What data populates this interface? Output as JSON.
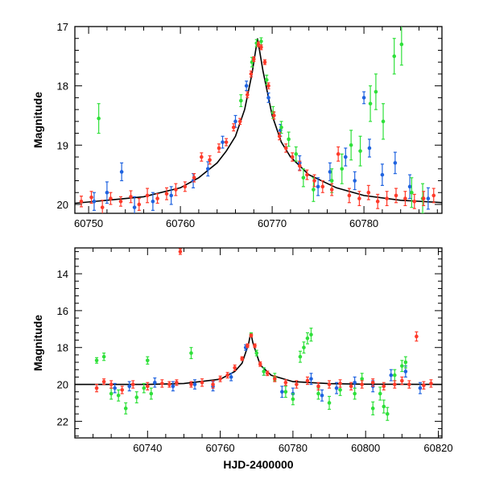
{
  "chart_data": [
    {
      "type": "scatter",
      "panel": "top",
      "xlabel": "",
      "ylabel": "Magnitude",
      "xlim": [
        60748.5,
        60788.5
      ],
      "ylim": [
        20.15,
        17.0
      ],
      "y_inverted": true,
      "xticks": [
        60750,
        60760,
        60770,
        60780
      ],
      "xtick_labels": [
        "60750",
        "60760",
        "60770",
        "60780"
      ],
      "yticks": [
        17,
        18,
        19,
        20
      ],
      "ytick_labels": [
        "17",
        "18",
        "19",
        "20"
      ],
      "grid": false,
      "legend": "none",
      "model_curve": {
        "peak_x": 60768.4,
        "peak_mag": 17.2,
        "baseline_mag": 20.0,
        "x": [
          60748.5,
          60752,
          60756,
          60760,
          60762,
          60764,
          60765,
          60766,
          60767,
          60767.8,
          60768.4,
          60769,
          60770,
          60771,
          60772,
          60774,
          60777,
          60780,
          60784,
          60788.5
        ],
        "y": [
          19.98,
          19.93,
          19.87,
          19.72,
          19.55,
          19.3,
          19.1,
          18.85,
          18.4,
          17.8,
          17.2,
          17.75,
          18.5,
          18.95,
          19.2,
          19.5,
          19.72,
          19.85,
          19.93,
          19.97
        ]
      },
      "series": [
        {
          "color": "#ff3a2a",
          "points": [
            [
              60749.2,
              19.95,
              0.09
            ],
            [
              60750.3,
              19.88,
              0.1
            ],
            [
              60751.5,
              20.05,
              0.12
            ],
            [
              60752.4,
              19.9,
              0.1
            ],
            [
              60753.5,
              19.95,
              0.08
            ],
            [
              60754.6,
              19.87,
              0.1
            ],
            [
              60755.5,
              20.0,
              0.1
            ],
            [
              60756.4,
              19.85,
              0.12
            ],
            [
              60757.5,
              19.9,
              0.08
            ],
            [
              60758.5,
              19.82,
              0.1
            ],
            [
              60759.5,
              19.75,
              0.1
            ],
            [
              60760.5,
              19.7,
              0.08
            ],
            [
              60761.5,
              19.55,
              0.07
            ],
            [
              60762.3,
              19.2,
              0.07
            ],
            [
              60763.2,
              19.25,
              0.07
            ],
            [
              60764.2,
              19.05,
              0.07
            ],
            [
              60765.0,
              18.95,
              0.06
            ],
            [
              60765.8,
              18.7,
              0.06
            ],
            [
              60766.5,
              18.6,
              0.05
            ],
            [
              60767.3,
              18.15,
              0.05
            ],
            [
              60767.7,
              17.8,
              0.05
            ],
            [
              60768.0,
              17.55,
              0.04
            ],
            [
              60768.5,
              17.3,
              0.04
            ],
            [
              60768.8,
              17.35,
              0.04
            ],
            [
              60769.2,
              17.6,
              0.04
            ],
            [
              60769.6,
              18.0,
              0.05
            ],
            [
              60770.2,
              18.5,
              0.06
            ],
            [
              60770.8,
              18.85,
              0.06
            ],
            [
              60771.5,
              19.05,
              0.07
            ],
            [
              60772.2,
              19.2,
              0.07
            ],
            [
              60773.0,
              19.35,
              0.08
            ],
            [
              60773.8,
              19.5,
              0.08
            ],
            [
              60774.6,
              19.6,
              0.1
            ],
            [
              60775.5,
              19.7,
              0.1
            ],
            [
              60776.5,
              19.75,
              0.1
            ],
            [
              60777.2,
              19.15,
              0.12
            ],
            [
              60778.4,
              19.85,
              0.12
            ],
            [
              60779.5,
              19.9,
              0.12
            ],
            [
              60780.5,
              19.8,
              0.12
            ],
            [
              60781.5,
              19.95,
              0.12
            ],
            [
              60782.5,
              19.9,
              0.12
            ],
            [
              60783.5,
              19.85,
              0.12
            ],
            [
              60784.5,
              19.9,
              0.12
            ],
            [
              60785.5,
              19.95,
              0.12
            ],
            [
              60786.5,
              19.9,
              0.12
            ],
            [
              60787.6,
              19.85,
              0.12
            ]
          ]
        },
        {
          "color": "#1f63e0",
          "points": [
            [
              60750.6,
              19.95,
              0.15
            ],
            [
              60752.0,
              19.8,
              0.18
            ],
            [
              60753.6,
              19.45,
              0.15
            ],
            [
              60755.0,
              20.05,
              0.18
            ],
            [
              60757.0,
              19.95,
              0.15
            ],
            [
              60759.0,
              19.85,
              0.15
            ],
            [
              60761.4,
              19.6,
              0.12
            ],
            [
              60763.0,
              19.4,
              0.12
            ],
            [
              60764.6,
              18.95,
              0.1
            ],
            [
              60766.0,
              18.6,
              0.1
            ],
            [
              60767.2,
              18.0,
              0.08
            ],
            [
              60769.6,
              18.2,
              0.08
            ],
            [
              60770.9,
              18.75,
              0.1
            ],
            [
              60773.0,
              19.3,
              0.12
            ],
            [
              60775.0,
              19.7,
              0.15
            ],
            [
              60776.3,
              19.45,
              0.15
            ],
            [
              60778.0,
              19.2,
              0.15
            ],
            [
              60779.0,
              19.6,
              0.15
            ],
            [
              60780.0,
              18.2,
              0.1
            ],
            [
              60780.6,
              19.05,
              0.15
            ],
            [
              60782.0,
              19.5,
              0.18
            ],
            [
              60783.4,
              19.3,
              0.18
            ],
            [
              60785.0,
              19.7,
              0.2
            ],
            [
              60787.0,
              19.9,
              0.18
            ]
          ]
        },
        {
          "color": "#2fe03a",
          "points": [
            [
              60751.1,
              18.55,
              0.25
            ],
            [
              60766.6,
              18.25,
              0.1
            ],
            [
              60767.8,
              17.6,
              0.08
            ],
            [
              60768.3,
              17.28,
              0.06
            ],
            [
              60768.8,
              17.25,
              0.06
            ],
            [
              60769.4,
              17.9,
              0.08
            ],
            [
              60770.1,
              18.45,
              0.1
            ],
            [
              60771.0,
              18.7,
              0.1
            ],
            [
              60771.8,
              18.9,
              0.12
            ],
            [
              60772.6,
              19.15,
              0.12
            ],
            [
              60773.4,
              19.55,
              0.15
            ],
            [
              60774.5,
              19.75,
              0.2
            ],
            [
              60776.5,
              19.6,
              0.2
            ],
            [
              60777.6,
              19.4,
              0.25
            ],
            [
              60778.6,
              19.0,
              0.25
            ],
            [
              60779.6,
              19.1,
              0.25
            ],
            [
              60780.7,
              18.3,
              0.3
            ],
            [
              60781.3,
              18.1,
              0.3
            ],
            [
              60782.1,
              18.6,
              0.3
            ],
            [
              60783.3,
              17.5,
              0.3
            ],
            [
              60784.1,
              17.3,
              0.35
            ],
            [
              60785.2,
              19.8,
              0.25
            ],
            [
              60786.4,
              19.9,
              0.25
            ]
          ]
        }
      ]
    },
    {
      "type": "scatter",
      "panel": "bottom",
      "xlabel": "HJD-2400000",
      "ylabel": "Magnitude",
      "xlim": [
        60720,
        60821
      ],
      "ylim": [
        22.9,
        12.6
      ],
      "y_inverted": true,
      "xticks": [
        60740,
        60760,
        60780,
        60800,
        60820
      ],
      "xtick_labels": [
        "60740",
        "60760",
        "60780",
        "60800",
        "60820"
      ],
      "yticks": [
        14,
        16,
        18,
        20,
        22
      ],
      "ytick_labels": [
        "14",
        "16",
        "18",
        "20",
        "22"
      ],
      "grid": false,
      "legend": "none",
      "model_curve": {
        "peak_x": 60768.4,
        "peak_mag": 17.2,
        "baseline_mag": 20.0,
        "x": [
          60720,
          60740,
          60750,
          60760,
          60764,
          60766,
          60767.8,
          60768.4,
          60769,
          60771,
          60774,
          60780,
          60790,
          60800,
          60821
        ],
        "y": [
          20.0,
          20.0,
          19.95,
          19.72,
          19.3,
          18.85,
          17.8,
          17.2,
          17.75,
          18.95,
          19.5,
          19.85,
          19.96,
          19.99,
          20.0
        ]
      },
      "series": [
        {
          "color": "#ff3a2a",
          "points": [
            [
              60726,
              20.2,
              0.2
            ],
            [
              60728,
              19.85,
              0.15
            ],
            [
              60730,
              20.0,
              0.2
            ],
            [
              60733,
              20.3,
              0.2
            ],
            [
              60736,
              20.0,
              0.2
            ],
            [
              60740,
              20.1,
              0.2
            ],
            [
              60744,
              19.95,
              0.2
            ],
            [
              60746,
              20.0,
              0.15
            ],
            [
              60748,
              19.9,
              0.15
            ],
            [
              60749,
              12.8,
              0.15
            ],
            [
              60752,
              20.0,
              0.15
            ],
            [
              60755,
              19.9,
              0.2
            ],
            [
              60758,
              20.0,
              0.2
            ],
            [
              60760,
              19.7,
              0.15
            ],
            [
              60762,
              19.5,
              0.15
            ],
            [
              60764,
              19.1,
              0.15
            ],
            [
              60766,
              18.6,
              0.1
            ],
            [
              60767.5,
              17.9,
              0.1
            ],
            [
              60768.5,
              17.35,
              0.08
            ],
            [
              60769.5,
              17.9,
              0.1
            ],
            [
              60771,
              18.9,
              0.12
            ],
            [
              60773,
              19.4,
              0.12
            ],
            [
              60775,
              19.7,
              0.15
            ],
            [
              60778,
              19.9,
              0.15
            ],
            [
              60781,
              20.0,
              0.2
            ],
            [
              60784,
              19.8,
              0.2
            ],
            [
              60787,
              20.1,
              0.2
            ],
            [
              60790,
              20.0,
              0.2
            ],
            [
              60793,
              19.95,
              0.2
            ],
            [
              60796,
              20.1,
              0.2
            ],
            [
              60799,
              20.0,
              0.2
            ],
            [
              60802,
              19.9,
              0.2
            ],
            [
              60805,
              20.1,
              0.2
            ],
            [
              60808,
              20.0,
              0.2
            ],
            [
              60810,
              19.8,
              0.2
            ],
            [
              60812,
              20.0,
              0.2
            ],
            [
              60814,
              17.4,
              0.25
            ],
            [
              60816,
              20.05,
              0.2
            ],
            [
              60818,
              19.95,
              0.2
            ]
          ]
        },
        {
          "color": "#1f63e0",
          "points": [
            [
              60731,
              20.2,
              0.25
            ],
            [
              60735,
              20.1,
              0.25
            ],
            [
              60742,
              19.9,
              0.25
            ],
            [
              60747,
              20.1,
              0.25
            ],
            [
              60753,
              20.0,
              0.25
            ],
            [
              60758,
              20.1,
              0.25
            ],
            [
              60763,
              19.6,
              0.2
            ],
            [
              60767,
              18.0,
              0.15
            ],
            [
              60772,
              19.3,
              0.2
            ],
            [
              60777,
              20.4,
              0.3
            ],
            [
              60780,
              20.5,
              0.3
            ],
            [
              60785,
              19.7,
              0.3
            ],
            [
              60788,
              20.6,
              0.3
            ],
            [
              60792,
              20.2,
              0.3
            ],
            [
              60797,
              19.9,
              0.3
            ],
            [
              60802,
              20.1,
              0.3
            ],
            [
              60807,
              19.5,
              0.3
            ],
            [
              60811,
              19.3,
              0.3
            ],
            [
              60815,
              20.2,
              0.3
            ]
          ]
        },
        {
          "color": "#2fe03a",
          "points": [
            [
              60726,
              18.7,
              0.15
            ],
            [
              60728,
              18.5,
              0.2
            ],
            [
              60730,
              20.5,
              0.3
            ],
            [
              60732,
              20.6,
              0.3
            ],
            [
              60734,
              21.3,
              0.3
            ],
            [
              60737,
              20.7,
              0.3
            ],
            [
              60739,
              20.2,
              0.25
            ],
            [
              60740,
              18.7,
              0.2
            ],
            [
              60741,
              20.5,
              0.3
            ],
            [
              60752,
              18.3,
              0.3
            ],
            [
              60768.5,
              17.3,
              0.1
            ],
            [
              60770,
              18.3,
              0.15
            ],
            [
              60772,
              19.3,
              0.2
            ],
            [
              60775,
              19.6,
              0.2
            ],
            [
              60778,
              20.4,
              0.3
            ],
            [
              60780,
              20.8,
              0.3
            ],
            [
              60782,
              18.5,
              0.3
            ],
            [
              60783,
              18.0,
              0.3
            ],
            [
              60784,
              17.5,
              0.3
            ],
            [
              60785,
              17.3,
              0.35
            ],
            [
              60787,
              20.5,
              0.3
            ],
            [
              60790,
              21.0,
              0.35
            ],
            [
              60793,
              20.3,
              0.3
            ],
            [
              60797,
              20.5,
              0.3
            ],
            [
              60799,
              19.7,
              0.3
            ],
            [
              60802,
              21.3,
              0.35
            ],
            [
              60804,
              20.5,
              0.35
            ],
            [
              60805,
              21.2,
              0.35
            ],
            [
              60806,
              21.6,
              0.35
            ],
            [
              60808,
              19.5,
              0.3
            ],
            [
              60810,
              19.0,
              0.3
            ],
            [
              60811,
              18.8,
              0.3
            ]
          ]
        }
      ]
    }
  ]
}
